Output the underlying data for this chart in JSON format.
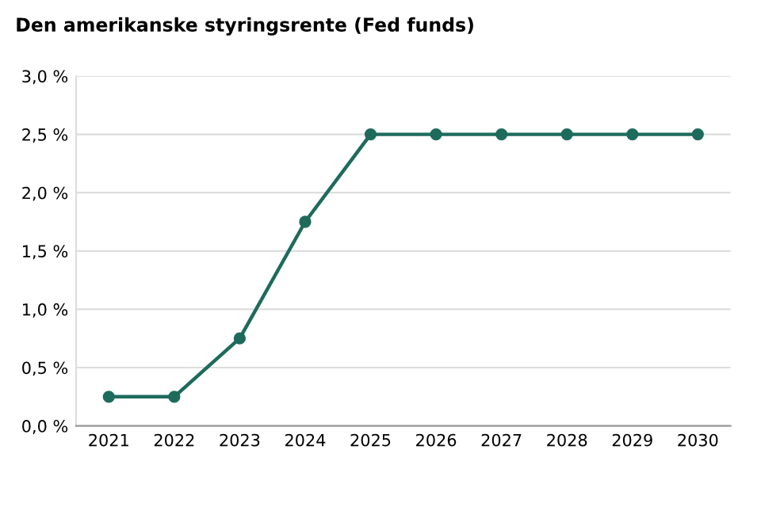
{
  "chart_data": {
    "type": "line",
    "title": "Den amerikanske styringsrente (Fed funds)",
    "categories": [
      "2021",
      "2022",
      "2023",
      "2024",
      "2025",
      "2026",
      "2027",
      "2028",
      "2029",
      "2030"
    ],
    "series": [
      {
        "color": "#1e6b5c",
        "values": [
          0.25,
          0.25,
          0.75,
          1.75,
          2.5,
          2.5,
          2.5,
          2.5,
          2.5,
          2.5
        ]
      }
    ],
    "ylim": [
      0,
      3
    ],
    "yticks": [
      {
        "value": 0,
        "label": "0,0 %"
      },
      {
        "value": 0.5,
        "label": "0,5 %"
      },
      {
        "value": 1,
        "label": "1,0 %"
      },
      {
        "value": 1.5,
        "label": "1,5 %"
      },
      {
        "value": 2,
        "label": "2,0 %"
      },
      {
        "value": 2.5,
        "label": "2,5 %"
      },
      {
        "value": 3,
        "label": "3,0 %"
      }
    ],
    "grid": "y",
    "marker": "circle",
    "line_style": "solid"
  }
}
